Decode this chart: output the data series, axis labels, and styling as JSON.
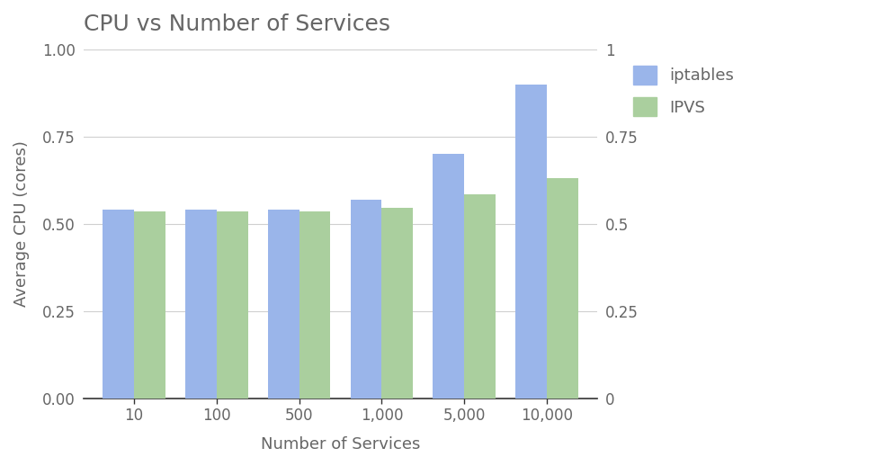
{
  "title": "CPU vs Number of Services",
  "xlabel": "Number of Services",
  "ylabel": "Average CPU (cores)",
  "categories": [
    "10",
    "100",
    "500",
    "1,000",
    "5,000",
    "10,000"
  ],
  "iptables": [
    0.54,
    0.54,
    0.54,
    0.57,
    0.7,
    0.9
  ],
  "ipvs": [
    0.535,
    0.535,
    0.535,
    0.545,
    0.585,
    0.63
  ],
  "iptables_color": "#9ab5ea",
  "ipvs_color": "#aacf9e",
  "ylim": [
    0,
    1.0
  ],
  "yticks": [
    0.0,
    0.25,
    0.5,
    0.75,
    1.0
  ],
  "ytick_labels_left": [
    "0.00",
    "0.25",
    "0.50",
    "0.75",
    "1.00"
  ],
  "ytick_labels_right": [
    "0",
    "0.25",
    "0.5",
    "0.75",
    "1"
  ],
  "background_color": "#ffffff",
  "grid_color": "#d0d0d0",
  "text_color": "#666666",
  "bar_width": 0.38,
  "legend_labels": [
    "iptables",
    "IPVS"
  ]
}
